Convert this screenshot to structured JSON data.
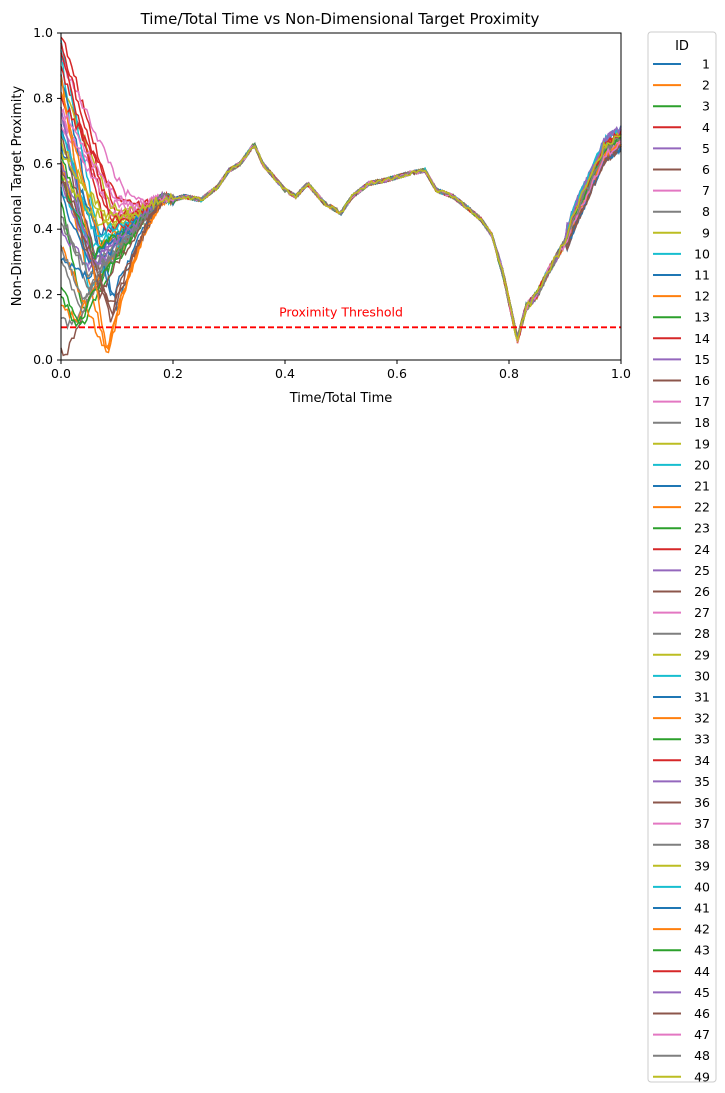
{
  "chart_data": {
    "type": "line",
    "title": "Time/Total Time vs Non-Dimensional Target Proximity",
    "xlabel": "Time/Total Time",
    "ylabel": "Non-Dimensional Target Proximity",
    "xlim": [
      0,
      1
    ],
    "ylim": [
      0,
      1
    ],
    "xticks": [
      "0.0",
      "0.2",
      "0.4",
      "0.6",
      "0.8",
      "1.0"
    ],
    "yticks": [
      "0.0",
      "0.2",
      "0.4",
      "0.6",
      "0.8",
      "1.0"
    ],
    "grid": false,
    "legend_title": "ID",
    "legend_placement": "outside-right",
    "threshold": {
      "value": 0.1,
      "label": "Proximity Threshold",
      "color": "#ff0000",
      "style": "dashed"
    },
    "common_path": {
      "x": [
        0.12,
        0.14,
        0.16,
        0.18,
        0.2,
        0.22,
        0.25,
        0.28,
        0.3,
        0.32,
        0.345,
        0.36,
        0.38,
        0.4,
        0.42,
        0.44,
        0.45,
        0.47,
        0.5,
        0.52,
        0.55,
        0.58,
        0.6,
        0.62,
        0.65,
        0.67,
        0.7,
        0.73,
        0.75,
        0.77,
        0.79,
        0.8,
        0.815,
        0.83,
        0.85,
        0.87,
        0.9,
        0.92,
        0.95,
        0.97,
        1.0
      ],
      "y": [
        0.44,
        0.46,
        0.48,
        0.5,
        0.49,
        0.5,
        0.49,
        0.53,
        0.58,
        0.6,
        0.66,
        0.6,
        0.56,
        0.52,
        0.5,
        0.54,
        0.52,
        0.48,
        0.45,
        0.5,
        0.54,
        0.55,
        0.56,
        0.57,
        0.58,
        0.52,
        0.5,
        0.46,
        0.43,
        0.38,
        0.26,
        0.18,
        0.06,
        0.16,
        0.2,
        0.27,
        0.36,
        0.45,
        0.56,
        0.64,
        0.68
      ]
    },
    "series": [
      {
        "name": "1",
        "start": 0.72,
        "min": 0.16,
        "minx": 0.1,
        "color": "#1f77b4"
      },
      {
        "name": "2",
        "start": 0.61,
        "min": 0.01,
        "minx": 0.083,
        "color": "#ff7f0e"
      },
      {
        "name": "3",
        "start": 0.49,
        "min": 0.14,
        "minx": 0.04,
        "color": "#2ca02c"
      },
      {
        "name": "4",
        "start": 1.0,
        "min": 0.44,
        "minx": 0.1,
        "color": "#d62728"
      },
      {
        "name": "5",
        "start": 0.55,
        "min": 0.27,
        "minx": 0.06,
        "color": "#9467bd"
      },
      {
        "name": "6",
        "start": 0.03,
        "min": 0.02,
        "minx": 0.01,
        "color": "#8c564b"
      },
      {
        "name": "7",
        "start": 0.74,
        "min": 0.48,
        "minx": 0.09,
        "color": "#e377c2"
      },
      {
        "name": "8",
        "start": 0.13,
        "min": 0.1,
        "minx": 0.02,
        "color": "#7f7f7f"
      },
      {
        "name": "9",
        "start": 0.56,
        "min": 0.45,
        "minx": 0.05,
        "color": "#bcbd22"
      },
      {
        "name": "10",
        "start": 0.96,
        "min": 0.2,
        "minx": 0.05,
        "color": "#17becf"
      },
      {
        "name": "11",
        "start": 0.65,
        "min": 0.39,
        "minx": 0.07,
        "color": "#1f77b4"
      },
      {
        "name": "12",
        "start": 0.16,
        "min": 0.12,
        "minx": 0.03,
        "color": "#ff7f0e"
      },
      {
        "name": "13",
        "start": 0.22,
        "min": 0.1,
        "minx": 0.04,
        "color": "#2ca02c"
      },
      {
        "name": "14",
        "start": 0.9,
        "min": 0.46,
        "minx": 0.08,
        "color": "#d62728"
      },
      {
        "name": "15",
        "start": 0.78,
        "min": 0.3,
        "minx": 0.05,
        "color": "#9467bd"
      },
      {
        "name": "16",
        "start": 0.6,
        "min": 0.12,
        "minx": 0.09,
        "color": "#8c564b"
      },
      {
        "name": "17",
        "start": 0.7,
        "min": 0.5,
        "minx": 0.1,
        "color": "#e377c2"
      },
      {
        "name": "18",
        "start": 0.3,
        "min": 0.15,
        "minx": 0.04,
        "color": "#7f7f7f"
      },
      {
        "name": "19",
        "start": 0.85,
        "min": 0.47,
        "minx": 0.09,
        "color": "#bcbd22"
      },
      {
        "name": "20",
        "start": 0.98,
        "min": 0.36,
        "minx": 0.07,
        "color": "#17becf"
      },
      {
        "name": "21",
        "start": 0.88,
        "min": 0.18,
        "minx": 0.09,
        "color": "#1f77b4"
      },
      {
        "name": "22",
        "start": 0.35,
        "min": 0.02,
        "minx": 0.08,
        "color": "#ff7f0e"
      },
      {
        "name": "23",
        "start": 0.62,
        "min": 0.33,
        "minx": 0.06,
        "color": "#2ca02c"
      },
      {
        "name": "24",
        "start": 0.8,
        "min": 0.5,
        "minx": 0.1,
        "color": "#d62728"
      },
      {
        "name": "25",
        "start": 0.4,
        "min": 0.28,
        "minx": 0.05,
        "color": "#9467bd"
      },
      {
        "name": "26",
        "start": 0.58,
        "min": 0.2,
        "minx": 0.07,
        "color": "#8c564b"
      },
      {
        "name": "27",
        "start": 0.92,
        "min": 0.52,
        "minx": 0.11,
        "color": "#e377c2"
      },
      {
        "name": "28",
        "start": 0.45,
        "min": 0.22,
        "minx": 0.05,
        "color": "#7f7f7f"
      },
      {
        "name": "29",
        "start": 0.66,
        "min": 0.42,
        "minx": 0.08,
        "color": "#bcbd22"
      },
      {
        "name": "30",
        "start": 0.52,
        "min": 0.34,
        "minx": 0.06,
        "color": "#17becf"
      },
      {
        "name": "31",
        "start": 0.3,
        "min": 0.25,
        "minx": 0.05,
        "color": "#1f77b4"
      },
      {
        "name": "32",
        "start": 0.82,
        "min": 0.35,
        "minx": 0.07,
        "color": "#ff7f0e"
      },
      {
        "name": "33",
        "start": 0.2,
        "min": 0.1,
        "minx": 0.03,
        "color": "#2ca02c"
      },
      {
        "name": "34",
        "start": 0.95,
        "min": 0.4,
        "minx": 0.08,
        "color": "#d62728"
      },
      {
        "name": "35",
        "start": 0.76,
        "min": 0.31,
        "minx": 0.06,
        "color": "#9467bd"
      },
      {
        "name": "36",
        "start": 0.68,
        "min": 0.14,
        "minx": 0.09,
        "color": "#8c564b"
      },
      {
        "name": "37",
        "start": 0.74,
        "min": 0.45,
        "minx": 0.09,
        "color": "#e377c2"
      },
      {
        "name": "38",
        "start": 0.42,
        "min": 0.26,
        "minx": 0.05,
        "color": "#7f7f7f"
      },
      {
        "name": "39",
        "start": 0.57,
        "min": 0.41,
        "minx": 0.07,
        "color": "#bcbd22"
      },
      {
        "name": "40",
        "start": 0.71,
        "min": 0.38,
        "minx": 0.06,
        "color": "#17becf"
      },
      {
        "name": "41",
        "start": 0.5,
        "min": 0.3,
        "minx": 0.05,
        "color": "#1f77b4"
      },
      {
        "name": "42",
        "start": 0.86,
        "min": 0.03,
        "minx": 0.082,
        "color": "#ff7f0e"
      },
      {
        "name": "43",
        "start": 0.56,
        "min": 0.32,
        "minx": 0.06,
        "color": "#2ca02c"
      },
      {
        "name": "44",
        "start": 0.97,
        "min": 0.43,
        "minx": 0.09,
        "color": "#d62728"
      },
      {
        "name": "45",
        "start": 0.61,
        "min": 0.29,
        "minx": 0.06,
        "color": "#9467bd"
      },
      {
        "name": "46",
        "start": 0.55,
        "min": 0.16,
        "minx": 0.09,
        "color": "#8c564b"
      },
      {
        "name": "47",
        "start": 0.77,
        "min": 0.49,
        "minx": 0.1,
        "color": "#e377c2"
      },
      {
        "name": "48",
        "start": 0.34,
        "min": 0.18,
        "minx": 0.04,
        "color": "#7f7f7f"
      },
      {
        "name": "49",
        "start": 0.63,
        "min": 0.44,
        "minx": 0.08,
        "color": "#bcbd22"
      }
    ]
  }
}
